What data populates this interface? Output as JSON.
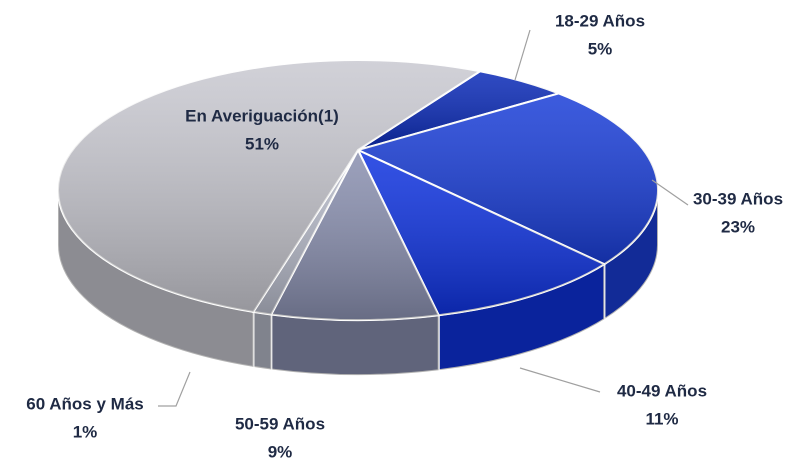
{
  "chart_data": {
    "type": "pie",
    "categories": [
      "18-29 Años",
      "30-39 Años",
      "40-49 Años",
      "50-59 Años",
      "60 Años y Más",
      "En Averiguación(1)"
    ],
    "values": [
      5,
      23,
      11,
      9,
      1,
      51
    ],
    "value_labels": [
      "5%",
      "23%",
      "11%",
      "9%",
      "1%",
      "51%"
    ],
    "colors": [
      "#0a2ab8",
      "#1a3ed8",
      "#0f33e0",
      "#8a90b0",
      "#b8bccb",
      "#c9c9d1"
    ]
  }
}
